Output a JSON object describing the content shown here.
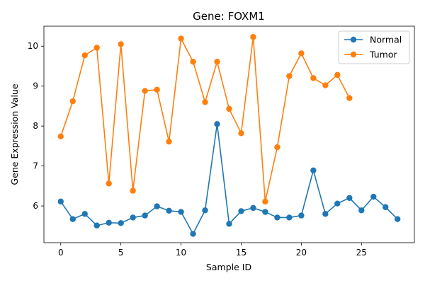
{
  "chart_data": {
    "type": "line",
    "title": "Gene: FOXM1",
    "xlabel": "Sample ID",
    "ylabel": "Gene Expression Value",
    "xlim": [
      -1.4,
      29.4
    ],
    "ylim": [
      5.08,
      10.5
    ],
    "xticks": [
      0,
      5,
      10,
      15,
      20,
      25
    ],
    "yticks": [
      6,
      7,
      8,
      9,
      10
    ],
    "legend_position": "top-right",
    "grid": false,
    "series": [
      {
        "name": "Normal",
        "color": "#1f77b4",
        "x": [
          0,
          1,
          2,
          3,
          4,
          5,
          6,
          7,
          8,
          9,
          10,
          11,
          12,
          13,
          14,
          15,
          16,
          17,
          18,
          19,
          20,
          21,
          22,
          23,
          24,
          25,
          26,
          27,
          28
        ],
        "y": [
          6.11,
          5.67,
          5.8,
          5.51,
          5.58,
          5.57,
          5.71,
          5.76,
          5.99,
          5.88,
          5.85,
          5.3,
          5.89,
          8.05,
          5.55,
          5.87,
          5.95,
          5.85,
          5.71,
          5.71,
          5.76,
          6.89,
          5.8,
          6.06,
          6.2,
          5.89,
          6.23,
          5.97,
          5.67
        ]
      },
      {
        "name": "Tumor",
        "color": "#ff7f0e",
        "x": [
          0,
          1,
          2,
          3,
          4,
          5,
          6,
          7,
          8,
          9,
          10,
          11,
          12,
          13,
          14,
          15,
          16,
          17,
          18,
          19,
          20,
          21,
          22,
          23,
          24
        ],
        "y": [
          7.74,
          8.62,
          9.77,
          9.96,
          6.56,
          10.05,
          6.38,
          8.88,
          8.91,
          7.61,
          10.19,
          9.61,
          8.6,
          9.61,
          8.43,
          7.82,
          10.23,
          6.11,
          7.47,
          9.25,
          9.82,
          9.2,
          9.02,
          9.28,
          8.7
        ]
      }
    ]
  }
}
